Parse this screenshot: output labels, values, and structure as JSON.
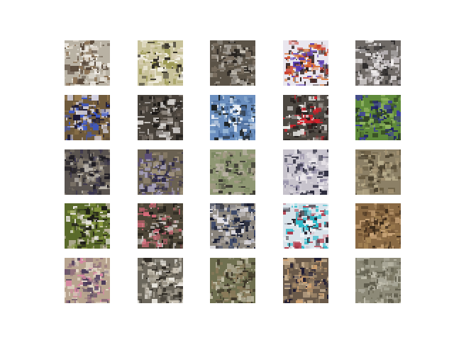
{
  "grid": {
    "rows": 5,
    "cols": 5,
    "samples": [
      {
        "bg": "#b9b2a4",
        "c1": "#f2efe9",
        "c2": "#5a4a3c",
        "c3": "#8c7356",
        "c4": "#d8d0c4"
      },
      {
        "bg": "#c8c29a",
        "c1": "#f4f1e6",
        "c2": "#2e2a22",
        "c3": "#9d9a54",
        "c4": "#d9cfb6"
      },
      {
        "bg": "#5b5347",
        "c1": "#9f9a92",
        "c2": "#27231f",
        "c3": "#7b6f61",
        "c4": "#c9c3b8"
      },
      {
        "bg": "#e9e6ee",
        "c1": "#d9783a",
        "c2": "#2b1b1a",
        "c3": "#5a3bb0",
        "c4": "#c83b2b"
      },
      {
        "bg": "#6f6a66",
        "c1": "#f1eeee",
        "c2": "#2c2a2a",
        "c3": "#c9c4c6",
        "c4": "#8c8684"
      },
      {
        "bg": "#6f5a3b",
        "c1": "#3b57c8",
        "c2": "#1a1836",
        "c3": "#d7d6e6",
        "c4": "#9b7e52"
      },
      {
        "bg": "#48423b",
        "c1": "#d5d2cf",
        "c2": "#1a1715",
        "c3": "#8f877f",
        "c4": "#5c534a"
      },
      {
        "bg": "#6b8fbf",
        "c1": "#f1f4f7",
        "c2": "#1d2122",
        "c3": "#4d6f9f",
        "c4": "#9dbbd8"
      },
      {
        "bg": "#4c4741",
        "c1": "#d6202a",
        "c2": "#201a18",
        "c3": "#f2f0ee",
        "c4": "#7b726a"
      },
      {
        "bg": "#5f8a3a",
        "c1": "#1e1f6a",
        "c2": "#314522",
        "c3": "#8fb45d",
        "c4": "#3d3da0"
      },
      {
        "bg": "#5a5450",
        "c1": "#bcb7ae",
        "c2": "#1d1b22",
        "c3": "#8a8173",
        "c4": "#3a3550"
      },
      {
        "bg": "#6a6152",
        "c1": "#a8a2bd",
        "c2": "#2c2846",
        "c3": "#9c8f76",
        "c4": "#5a4e7c"
      },
      {
        "bg": "#8f9773",
        "c1": "#b8b0a2",
        "c2": "#3a3832",
        "c3": "#7a8660",
        "c4": "#a39a86"
      },
      {
        "bg": "#c7c3cc",
        "c1": "#eeebee",
        "c2": "#2a2a3c",
        "c3": "#8b85a0",
        "c4": "#d9d5dc"
      },
      {
        "bg": "#8c8066",
        "c1": "#b9ad8c",
        "c2": "#4b412f",
        "c3": "#a39272",
        "c4": "#6b5e44"
      },
      {
        "bg": "#5a6a2a",
        "c1": "#eeebe8",
        "c2": "#1d1c18",
        "c3": "#8a9a40",
        "c4": "#b9b29b"
      },
      {
        "bg": "#4d4638",
        "c1": "#d86b7b",
        "c2": "#1f1c18",
        "c3": "#c9c4c0",
        "c4": "#7a6d58"
      },
      {
        "bg": "#8a847c",
        "c1": "#e4e2e8",
        "c2": "#151a2e",
        "c3": "#3e4a6a",
        "c4": "#b5b0ac"
      },
      {
        "bg": "#d9e3ea",
        "c1": "#27b7c8",
        "c2": "#24202a",
        "c3": "#f2f5f8",
        "c4": "#b23a4a"
      },
      {
        "bg": "#8a6a44",
        "c1": "#c9a478",
        "c2": "#3a2a1a",
        "c3": "#a88656",
        "c4": "#6b4e30"
      },
      {
        "bg": "#b8a48f",
        "c1": "#d886a4",
        "c2": "#4a3a5a",
        "c3": "#e4d8c8",
        "c4": "#8c6a7a"
      },
      {
        "bg": "#6c675c",
        "c1": "#e9e6df",
        "c2": "#2a2620",
        "c3": "#9b9485",
        "c4": "#c9c2b4"
      },
      {
        "bg": "#6f7050",
        "c1": "#a6a18a",
        "c2": "#3a3326",
        "c3": "#8a7a5a",
        "c4": "#c4bfa8"
      },
      {
        "bg": "#6a5a4a",
        "c1": "#d3a472",
        "c2": "#1c1a32",
        "c3": "#9a8468",
        "c4": "#c8b090"
      },
      {
        "bg": "#8d8a78",
        "c1": "#a9a798",
        "c2": "#5d5a4a",
        "c3": "#c3c0b0",
        "c4": "#76735f"
      }
    ]
  }
}
